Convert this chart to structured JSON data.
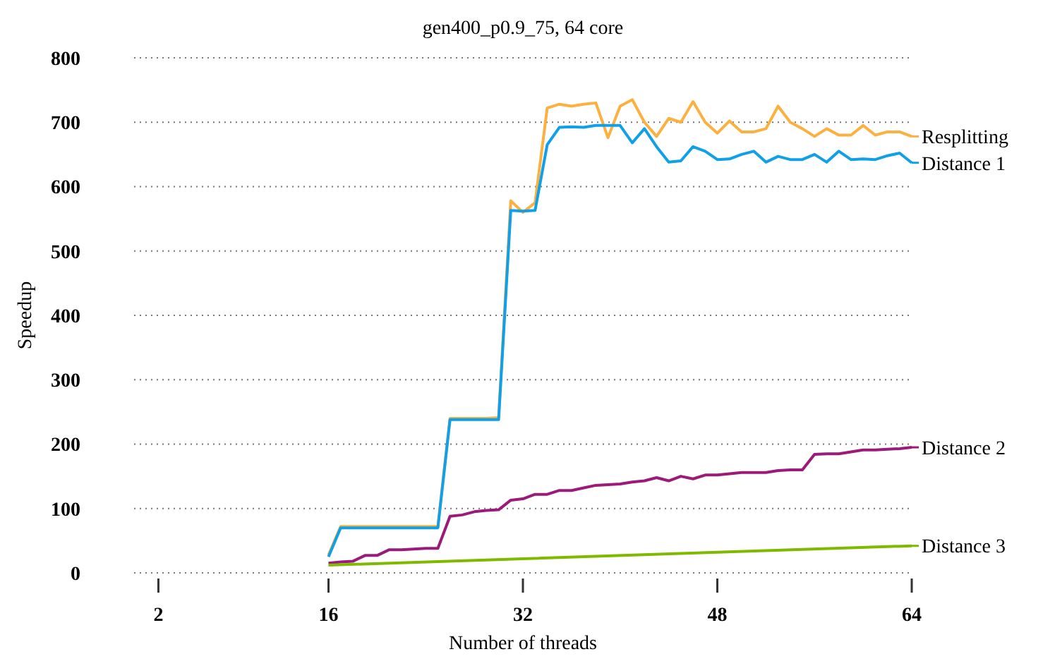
{
  "chart_data": {
    "type": "line",
    "title": "gen400_p0.9_75, 64 core",
    "xlabel": "Number of threads",
    "ylabel": "Speedup",
    "x": [
      16,
      17,
      18,
      19,
      20,
      21,
      22,
      23,
      24,
      25,
      26,
      27,
      28,
      29,
      30,
      31,
      32,
      33,
      34,
      35,
      36,
      37,
      38,
      39,
      40,
      41,
      42,
      43,
      44,
      45,
      46,
      47,
      48,
      49,
      50,
      51,
      52,
      53,
      54,
      55,
      56,
      57,
      58,
      59,
      60,
      61,
      62,
      63,
      64
    ],
    "xlim": [
      0,
      64
    ],
    "xticks": [
      2,
      16,
      32,
      48,
      64
    ],
    "ylim": [
      0,
      800
    ],
    "yticks": [
      0,
      100,
      200,
      300,
      400,
      500,
      600,
      700,
      800
    ],
    "grid": "y",
    "legend": "right",
    "line_style": "solid",
    "marker": "none",
    "series": [
      {
        "name": "Resplitting",
        "color": "#fbb040",
        "values": [
          28,
          72,
          72,
          72,
          72,
          72,
          72,
          72,
          72,
          72,
          240,
          240,
          240,
          240,
          241,
          578,
          560,
          575,
          722,
          728,
          725,
          728,
          730,
          676,
          725,
          735,
          700,
          678,
          706,
          700,
          732,
          700,
          683,
          702,
          685,
          685,
          690,
          725,
          700,
          690,
          678,
          690,
          680,
          680,
          695,
          680,
          685,
          685,
          678
        ]
      },
      {
        "name": "Distance 1",
        "color": "#0fa0e8",
        "values": [
          25,
          70,
          70,
          70,
          70,
          70,
          70,
          70,
          70,
          70,
          238,
          238,
          238,
          238,
          238,
          563,
          562,
          563,
          665,
          692,
          693,
          692,
          695,
          695,
          695,
          668,
          690,
          662,
          638,
          640,
          662,
          655,
          642,
          643,
          650,
          655,
          638,
          647,
          642,
          642,
          650,
          638,
          655,
          642,
          643,
          642,
          648,
          652,
          637
        ]
      },
      {
        "name": "Distance 2",
        "color": "#9b1a7a",
        "values": [
          15,
          17,
          18,
          27,
          27,
          36,
          36,
          37,
          38,
          38,
          88,
          90,
          95,
          97,
          98,
          113,
          115,
          122,
          122,
          128,
          128,
          132,
          136,
          137,
          138,
          141,
          143,
          148,
          143,
          150,
          146,
          152,
          152,
          154,
          156,
          156,
          156,
          159,
          160,
          160,
          184,
          185,
          185,
          188,
          191,
          191,
          192,
          193,
          195
        ]
      },
      {
        "name": "Distance 3",
        "color": "#7fba00",
        "x": [
          16,
          32,
          48,
          64
        ],
        "values": [
          12,
          22,
          32,
          42
        ]
      }
    ]
  }
}
